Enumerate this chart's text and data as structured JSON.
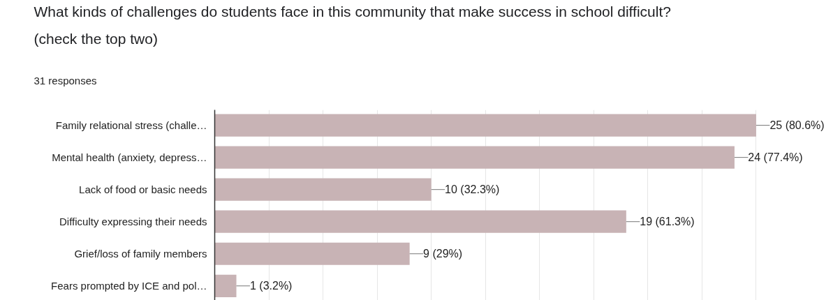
{
  "chart_data": {
    "type": "bar",
    "orientation": "horizontal",
    "title": "What kinds of challenges do students face in this community that make success in school difficult? (check the top two)",
    "subtitle": "31 responses",
    "categories": [
      "Family relational stress (challe…",
      "Mental health (anxiety, depress…",
      "Lack of food or basic needs",
      "Difficulty expressing their needs",
      "Grief/loss of family members",
      "Fears prompted by ICE and pol…"
    ],
    "values": [
      25,
      24,
      10,
      19,
      9,
      1
    ],
    "value_labels": [
      "25 (80.6%)",
      "24 (77.4%)",
      "10 (32.3%)",
      "19 (61.3%)",
      "9 (29%)",
      "1 (3.2%)"
    ],
    "color": "#c8b3b5",
    "xticks": [
      {
        "value": 0,
        "label": null
      },
      {
        "value": 2.5,
        "label": null
      },
      {
        "value": 5,
        "label": null
      },
      {
        "value": 7.5,
        "label": null
      },
      {
        "value": 10,
        "label": null
      },
      {
        "value": 12.5,
        "label": null
      },
      {
        "value": 15,
        "label": null
      },
      {
        "value": 17.5,
        "label": null
      },
      {
        "value": 20,
        "label": null
      },
      {
        "value": 22.5,
        "label": null
      },
      {
        "value": 25,
        "label": null
      }
    ],
    "grid": "x",
    "tick_labels": "y"
  }
}
